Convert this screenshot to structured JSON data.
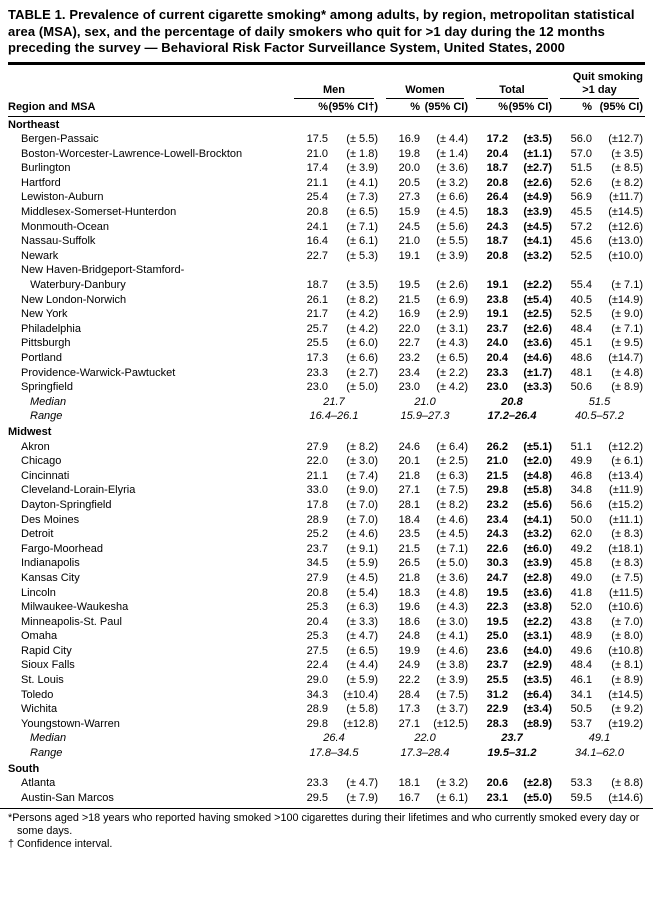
{
  "title": "TABLE 1. Prevalence of current cigarette smoking* among adults, by region, metropolitan statistical area (MSA), sex, and the percentage of daily smokers who quit for >1 day during the 12 months preceding the survey — Behavioral Risk Factor Surveillance System, United States, 2000",
  "header": {
    "region_col": "Region and MSA",
    "groups": [
      {
        "top": "",
        "label": "Men"
      },
      {
        "top": "",
        "label": "Women"
      },
      {
        "top": "",
        "label": "Total"
      },
      {
        "top": "Quit smoking",
        "label": ">1 day"
      }
    ],
    "sub": [
      "%",
      "(95% CI†)",
      "%",
      "(95% CI)",
      "%",
      "(95% CI)",
      "%",
      "(95% CI)"
    ]
  },
  "regions": [
    {
      "name": "Northeast",
      "rows": [
        {
          "msa": "Bergen-Passaic",
          "cells": [
            "17.5",
            "(± 5.5)",
            "16.9",
            "(± 4.4)",
            "17.2",
            "(±3.5)",
            "56.0",
            "(±12.7)"
          ]
        },
        {
          "msa": "Boston-Worcester-Lawrence-Lowell-Brockton",
          "cells": [
            "21.0",
            "(± 1.8)",
            "19.8",
            "(± 1.4)",
            "20.4",
            "(±1.1)",
            "57.0",
            "(± 3.5)"
          ]
        },
        {
          "msa": "Burlington",
          "cells": [
            "17.4",
            "(± 3.9)",
            "20.0",
            "(± 3.6)",
            "18.7",
            "(±2.7)",
            "51.5",
            "(± 8.5)"
          ]
        },
        {
          "msa": "Hartford",
          "cells": [
            "21.1",
            "(± 4.1)",
            "20.5",
            "(± 3.2)",
            "20.8",
            "(±2.6)",
            "52.6",
            "(± 8.2)"
          ]
        },
        {
          "msa": "Lewiston-Auburn",
          "cells": [
            "25.4",
            "(± 7.3)",
            "27.3",
            "(± 6.6)",
            "26.4",
            "(±4.9)",
            "56.9",
            "(±11.7)"
          ]
        },
        {
          "msa": "Middlesex-Somerset-Hunterdon",
          "cells": [
            "20.8",
            "(± 6.5)",
            "15.9",
            "(± 4.5)",
            "18.3",
            "(±3.9)",
            "45.5",
            "(±14.5)"
          ]
        },
        {
          "msa": "Monmouth-Ocean",
          "cells": [
            "24.1",
            "(± 7.1)",
            "24.5",
            "(± 5.6)",
            "24.3",
            "(±4.5)",
            "57.2",
            "(±12.6)"
          ]
        },
        {
          "msa": "Nassau-Suffolk",
          "cells": [
            "16.4",
            "(± 6.1)",
            "21.0",
            "(± 5.5)",
            "18.7",
            "(±4.1)",
            "45.6",
            "(±13.0)"
          ]
        },
        {
          "msa": "Newark",
          "cells": [
            "22.7",
            "(± 5.3)",
            "19.1",
            "(± 3.9)",
            "20.8",
            "(±3.2)",
            "52.5",
            "(±10.0)"
          ]
        },
        {
          "msa": "New Haven-Bridgeport-Stamford-\n   Waterbury-Danbury",
          "cells": [
            "18.7",
            "(± 3.5)",
            "19.5",
            "(± 2.6)",
            "19.1",
            "(±2.2)",
            "55.4",
            "(± 7.1)"
          ]
        },
        {
          "msa": "New London-Norwich",
          "cells": [
            "26.1",
            "(± 8.2)",
            "21.5",
            "(± 6.9)",
            "23.8",
            "(±5.4)",
            "40.5",
            "(±14.9)"
          ]
        },
        {
          "msa": "New York",
          "cells": [
            "21.7",
            "(± 4.2)",
            "16.9",
            "(± 2.9)",
            "19.1",
            "(±2.5)",
            "52.5",
            "(± 9.0)"
          ]
        },
        {
          "msa": "Philadelphia",
          "cells": [
            "25.7",
            "(± 4.2)",
            "22.0",
            "(± 3.1)",
            "23.7",
            "(±2.6)",
            "48.4",
            "(± 7.1)"
          ]
        },
        {
          "msa": "Pittsburgh",
          "cells": [
            "25.5",
            "(± 6.0)",
            "22.7",
            "(± 4.3)",
            "24.0",
            "(±3.6)",
            "45.1",
            "(± 9.5)"
          ]
        },
        {
          "msa": "Portland",
          "cells": [
            "17.3",
            "(± 6.6)",
            "23.2",
            "(± 6.5)",
            "20.4",
            "(±4.6)",
            "48.6",
            "(±14.7)"
          ]
        },
        {
          "msa": "Providence-Warwick-Pawtucket",
          "cells": [
            "23.3",
            "(± 2.7)",
            "23.4",
            "(± 2.2)",
            "23.3",
            "(±1.7)",
            "48.1",
            "(± 4.8)"
          ]
        },
        {
          "msa": "Springfield",
          "cells": [
            "23.0",
            "(± 5.0)",
            "23.0",
            "(± 4.2)",
            "23.0",
            "(±3.3)",
            "50.6",
            "(± 8.9)"
          ]
        }
      ],
      "median": {
        "label": "Median",
        "values": [
          "21.7",
          "21.0",
          "20.8",
          "51.5"
        ]
      },
      "range": {
        "label": "Range",
        "values": [
          "16.4–26.1",
          "15.9–27.3",
          "17.2–26.4",
          "40.5–57.2"
        ]
      }
    },
    {
      "name": "Midwest",
      "rows": [
        {
          "msa": "Akron",
          "cells": [
            "27.9",
            "(± 8.2)",
            "24.6",
            "(± 6.4)",
            "26.2",
            "(±5.1)",
            "51.1",
            "(±12.2)"
          ]
        },
        {
          "msa": "Chicago",
          "cells": [
            "22.0",
            "(± 3.0)",
            "20.1",
            "(± 2.5)",
            "21.0",
            "(±2.0)",
            "49.9",
            "(± 6.1)"
          ]
        },
        {
          "msa": "Cincinnati",
          "cells": [
            "21.1",
            "(± 7.4)",
            "21.8",
            "(± 6.3)",
            "21.5",
            "(±4.8)",
            "46.8",
            "(±13.4)"
          ]
        },
        {
          "msa": "Cleveland-Lorain-Elyria",
          "cells": [
            "33.0",
            "(± 9.0)",
            "27.1",
            "(± 7.5)",
            "29.8",
            "(±5.8)",
            "34.8",
            "(±11.9)"
          ]
        },
        {
          "msa": "Dayton-Springfield",
          "cells": [
            "17.8",
            "(± 7.0)",
            "28.1",
            "(± 8.2)",
            "23.2",
            "(±5.6)",
            "56.6",
            "(±15.2)"
          ]
        },
        {
          "msa": "Des Moines",
          "cells": [
            "28.9",
            "(± 7.0)",
            "18.4",
            "(± 4.6)",
            "23.4",
            "(±4.1)",
            "50.0",
            "(±11.1)"
          ]
        },
        {
          "msa": "Detroit",
          "cells": [
            "25.2",
            "(± 4.6)",
            "23.5",
            "(± 4.5)",
            "24.3",
            "(±3.2)",
            "62.0",
            "(± 8.3)"
          ]
        },
        {
          "msa": "Fargo-Moorhead",
          "cells": [
            "23.7",
            "(± 9.1)",
            "21.5",
            "(± 7.1)",
            "22.6",
            "(±6.0)",
            "49.2",
            "(±18.1)"
          ]
        },
        {
          "msa": "Indianapolis",
          "cells": [
            "34.5",
            "(± 5.9)",
            "26.5",
            "(± 5.0)",
            "30.3",
            "(±3.9)",
            "45.8",
            "(± 8.3)"
          ]
        },
        {
          "msa": "Kansas City",
          "cells": [
            "27.9",
            "(± 4.5)",
            "21.8",
            "(± 3.6)",
            "24.7",
            "(±2.8)",
            "49.0",
            "(± 7.5)"
          ]
        },
        {
          "msa": "Lincoln",
          "cells": [
            "20.8",
            "(± 5.4)",
            "18.3",
            "(± 4.8)",
            "19.5",
            "(±3.6)",
            "41.8",
            "(±11.5)"
          ]
        },
        {
          "msa": "Milwaukee-Waukesha",
          "cells": [
            "25.3",
            "(± 6.3)",
            "19.6",
            "(± 4.3)",
            "22.3",
            "(±3.8)",
            "52.0",
            "(±10.6)"
          ]
        },
        {
          "msa": "Minneapolis-St. Paul",
          "cells": [
            "20.4",
            "(± 3.3)",
            "18.6",
            "(± 3.0)",
            "19.5",
            "(±2.2)",
            "43.8",
            "(± 7.0)"
          ]
        },
        {
          "msa": "Omaha",
          "cells": [
            "25.3",
            "(± 4.7)",
            "24.8",
            "(± 4.1)",
            "25.0",
            "(±3.1)",
            "48.9",
            "(± 8.0)"
          ]
        },
        {
          "msa": "Rapid City",
          "cells": [
            "27.5",
            "(± 6.5)",
            "19.9",
            "(± 4.6)",
            "23.6",
            "(±4.0)",
            "49.6",
            "(±10.8)"
          ]
        },
        {
          "msa": "Sioux Falls",
          "cells": [
            "22.4",
            "(± 4.4)",
            "24.9",
            "(± 3.8)",
            "23.7",
            "(±2.9)",
            "48.4",
            "(± 8.1)"
          ]
        },
        {
          "msa": "St. Louis",
          "cells": [
            "29.0",
            "(± 5.9)",
            "22.2",
            "(± 3.9)",
            "25.5",
            "(±3.5)",
            "46.1",
            "(± 8.9)"
          ]
        },
        {
          "msa": "Toledo",
          "cells": [
            "34.3",
            "(±10.4)",
            "28.4",
            "(± 7.5)",
            "31.2",
            "(±6.4)",
            "34.1",
            "(±14.5)"
          ]
        },
        {
          "msa": "Wichita",
          "cells": [
            "28.9",
            "(± 5.8)",
            "17.3",
            "(± 3.7)",
            "22.9",
            "(±3.4)",
            "50.5",
            "(± 9.2)"
          ]
        },
        {
          "msa": "Youngstown-Warren",
          "cells": [
            "29.8",
            "(±12.8)",
            "27.1",
            "(±12.5)",
            "28.3",
            "(±8.9)",
            "53.7",
            "(±19.2)"
          ]
        }
      ],
      "median": {
        "label": "Median",
        "values": [
          "26.4",
          "22.0",
          "23.7",
          "49.1"
        ]
      },
      "range": {
        "label": "Range",
        "values": [
          "17.8–34.5",
          "17.3–28.4",
          "19.5–31.2",
          "34.1–62.0"
        ]
      }
    },
    {
      "name": "South",
      "rows": [
        {
          "msa": "Atlanta",
          "cells": [
            "23.3",
            "(± 4.7)",
            "18.1",
            "(± 3.2)",
            "20.6",
            "(±2.8)",
            "53.3",
            "(± 8.8)"
          ]
        },
        {
          "msa": "Austin-San Marcos",
          "cells": [
            "29.5",
            "(± 7.9)",
            "16.7",
            "(± 6.1)",
            "23.1",
            "(±5.0)",
            "59.5",
            "(±14.6)"
          ]
        }
      ]
    }
  ],
  "footnotes": [
    "*Persons aged >18 years who reported having smoked >100 cigarettes during their lifetimes and who currently smoked every day or some days.",
    "† Confidence interval."
  ]
}
